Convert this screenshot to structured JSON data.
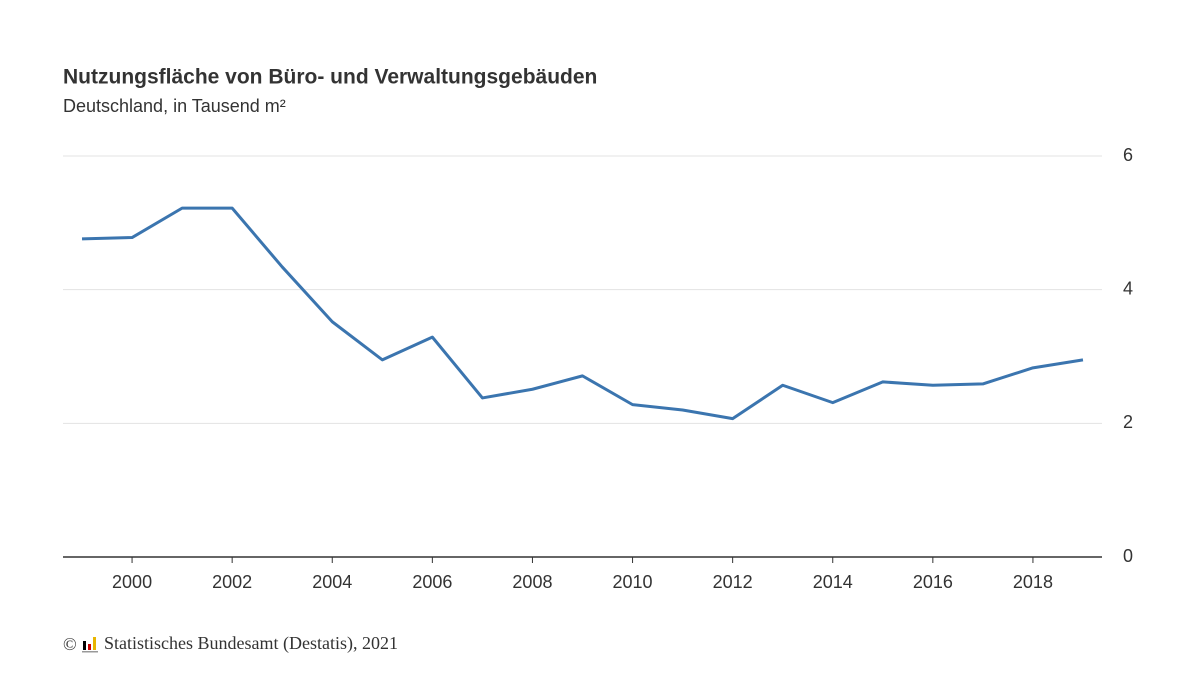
{
  "chart_data": {
    "type": "line",
    "title": "Nutzungsfläche von Büro- und Verwaltungsgebäuden",
    "subtitle": "Deutschland, in Tausend m²",
    "copyright": "©",
    "source": "Statistisches Bundesamt (Destatis), 2021",
    "x": [
      1999,
      2000,
      2001,
      2002,
      2003,
      2004,
      2005,
      2006,
      2007,
      2008,
      2009,
      2010,
      2011,
      2012,
      2013,
      2014,
      2015,
      2016,
      2017,
      2018,
      2019
    ],
    "series": [
      {
        "color": "#3b75af",
        "values": [
          4.76,
          4.78,
          5.22,
          5.22,
          4.34,
          3.52,
          2.95,
          3.29,
          2.38,
          2.51,
          2.71,
          2.28,
          2.2,
          2.07,
          2.57,
          2.31,
          2.62,
          2.57,
          2.59,
          2.83,
          2.95
        ]
      }
    ],
    "xlim": [
      1998.62,
      2019.38
    ],
    "xticks": [
      2000,
      2002,
      2004,
      2006,
      2008,
      2010,
      2012,
      2014,
      2016,
      2018
    ],
    "ylim": [
      0,
      6
    ],
    "yticks": [
      0,
      2,
      4,
      6
    ],
    "grid": true
  }
}
